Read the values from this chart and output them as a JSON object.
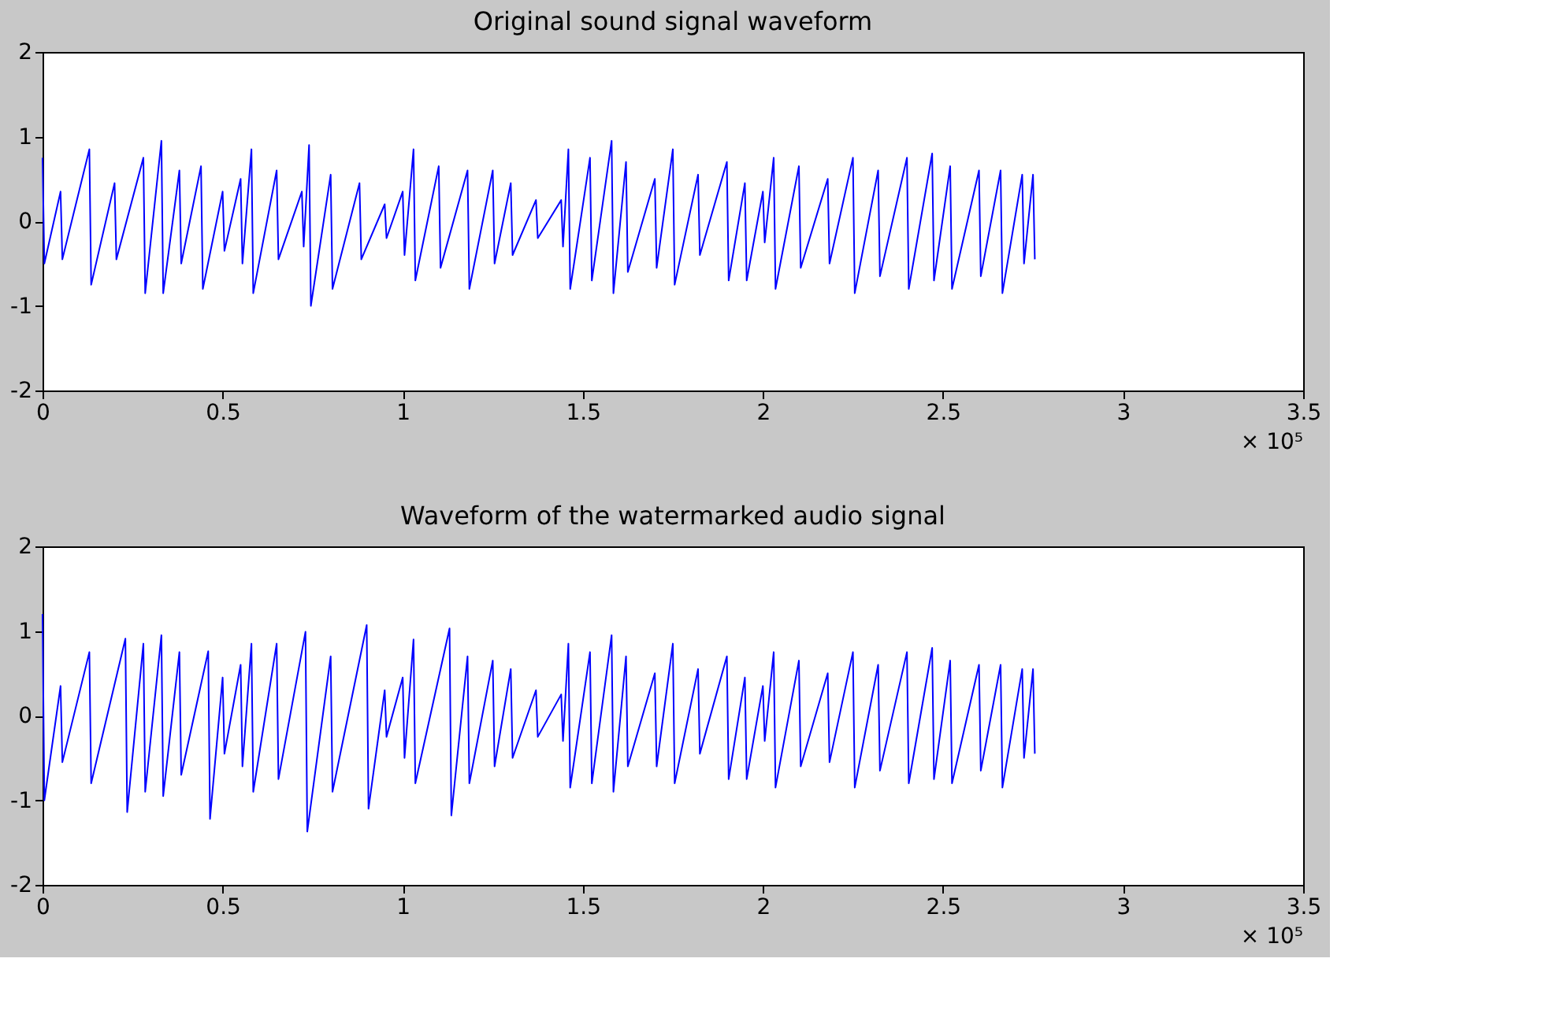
{
  "chart_data": [
    {
      "type": "line",
      "title": "Original sound signal waveform",
      "color": "#0000ff",
      "grid": false,
      "marker": "none",
      "line_style": "solid",
      "x": [
        0,
        0.005,
        0.05,
        0.055,
        0.13,
        0.135,
        0.2,
        0.205,
        0.28,
        0.285,
        0.33,
        0.335,
        0.38,
        0.385,
        0.44,
        0.445,
        0.5,
        0.505,
        0.55,
        0.555,
        0.58,
        0.585,
        0.65,
        0.655,
        0.72,
        0.725,
        0.74,
        0.745,
        0.8,
        0.805,
        0.88,
        0.885,
        0.95,
        0.955,
        1.0,
        1.005,
        1.03,
        1.035,
        1.1,
        1.105,
        1.18,
        1.185,
        1.25,
        1.255,
        1.3,
        1.305,
        1.37,
        1.375,
        1.44,
        1.445,
        1.46,
        1.465,
        1.52,
        1.525,
        1.58,
        1.585,
        1.62,
        1.625,
        1.7,
        1.705,
        1.75,
        1.755,
        1.82,
        1.825,
        1.9,
        1.905,
        1.95,
        1.955,
        2.0,
        2.005,
        2.03,
        2.035,
        2.1,
        2.105,
        2.18,
        2.185,
        2.25,
        2.255,
        2.32,
        2.325,
        2.4,
        2.405,
        2.47,
        2.475,
        2.52,
        2.525,
        2.6,
        2.605,
        2.66,
        2.665,
        2.72,
        2.725,
        2.75,
        2.755
      ],
      "values": [
        0.75,
        -0.5,
        0.35,
        -0.45,
        0.85,
        -0.75,
        0.45,
        -0.45,
        0.75,
        -0.85,
        0.95,
        -0.85,
        0.6,
        -0.5,
        0.65,
        -0.8,
        0.35,
        -0.35,
        0.5,
        -0.5,
        0.85,
        -0.85,
        0.6,
        -0.45,
        0.35,
        -0.3,
        0.9,
        -1.0,
        0.55,
        -0.8,
        0.45,
        -0.45,
        0.2,
        -0.2,
        0.35,
        -0.4,
        0.85,
        -0.7,
        0.65,
        -0.55,
        0.6,
        -0.8,
        0.6,
        -0.5,
        0.45,
        -0.4,
        0.25,
        -0.2,
        0.25,
        -0.3,
        0.85,
        -0.8,
        0.75,
        -0.7,
        0.95,
        -0.85,
        0.7,
        -0.6,
        0.5,
        -0.55,
        0.85,
        -0.75,
        0.55,
        -0.4,
        0.7,
        -0.7,
        0.45,
        -0.7,
        0.35,
        -0.25,
        0.75,
        -0.8,
        0.65,
        -0.55,
        0.5,
        -0.5,
        0.75,
        -0.85,
        0.6,
        -0.65,
        0.75,
        -0.8,
        0.8,
        -0.7,
        0.65,
        -0.8,
        0.6,
        -0.65,
        0.6,
        -0.85,
        0.55,
        -0.5,
        0.55,
        -0.45
      ],
      "xlim": [
        0,
        3.5
      ],
      "xticks": [
        0,
        0.5,
        1,
        1.5,
        2,
        2.5,
        3,
        3.5
      ],
      "ylim": [
        -2,
        2
      ],
      "yticks": [
        -2,
        -1,
        0,
        1,
        2
      ],
      "annotations": [
        "× 10⁵"
      ]
    },
    {
      "type": "line",
      "title": "Waveform of the watermarked audio signal",
      "color": "#0000ff",
      "grid": false,
      "marker": "none",
      "line_style": "solid",
      "x": [
        0,
        0.005,
        0.05,
        0.055,
        0.13,
        0.135,
        0.23,
        0.235,
        0.28,
        0.285,
        0.33,
        0.335,
        0.38,
        0.385,
        0.46,
        0.465,
        0.5,
        0.505,
        0.55,
        0.555,
        0.58,
        0.585,
        0.65,
        0.655,
        0.73,
        0.735,
        0.8,
        0.805,
        0.9,
        0.905,
        0.95,
        0.955,
        1.0,
        1.005,
        1.03,
        1.035,
        1.13,
        1.135,
        1.18,
        1.185,
        1.25,
        1.255,
        1.3,
        1.305,
        1.37,
        1.375,
        1.44,
        1.445,
        1.46,
        1.465,
        1.52,
        1.525,
        1.58,
        1.585,
        1.62,
        1.625,
        1.7,
        1.705,
        1.75,
        1.755,
        1.82,
        1.825,
        1.9,
        1.905,
        1.95,
        1.955,
        2.0,
        2.005,
        2.03,
        2.035,
        2.1,
        2.105,
        2.18,
        2.185,
        2.25,
        2.255,
        2.32,
        2.325,
        2.4,
        2.405,
        2.47,
        2.475,
        2.52,
        2.525,
        2.6,
        2.605,
        2.66,
        2.665,
        2.72,
        2.725,
        2.75,
        2.755
      ],
      "values": [
        1.2,
        -1.0,
        0.35,
        -0.55,
        0.75,
        -0.8,
        0.91,
        -1.14,
        0.85,
        -0.9,
        0.95,
        -0.95,
        0.75,
        -0.7,
        0.76,
        -1.22,
        0.45,
        -0.45,
        0.6,
        -0.6,
        0.85,
        -0.9,
        0.85,
        -0.75,
        0.99,
        -1.37,
        0.7,
        -0.9,
        1.07,
        -1.1,
        0.3,
        -0.25,
        0.45,
        -0.5,
        0.9,
        -0.8,
        1.03,
        -1.18,
        0.7,
        -0.8,
        0.65,
        -0.6,
        0.55,
        -0.5,
        0.3,
        -0.25,
        0.25,
        -0.3,
        0.85,
        -0.85,
        0.75,
        -0.8,
        0.95,
        -0.9,
        0.7,
        -0.6,
        0.5,
        -0.6,
        0.85,
        -0.8,
        0.55,
        -0.45,
        0.7,
        -0.75,
        0.45,
        -0.75,
        0.35,
        -0.3,
        0.75,
        -0.85,
        0.65,
        -0.6,
        0.5,
        -0.55,
        0.75,
        -0.85,
        0.6,
        -0.65,
        0.75,
        -0.8,
        0.8,
        -0.75,
        0.65,
        -0.8,
        0.6,
        -0.65,
        0.6,
        -0.85,
        0.55,
        -0.5,
        0.55,
        -0.45
      ],
      "xlim": [
        0,
        3.5
      ],
      "xticks": [
        0,
        0.5,
        1,
        1.5,
        2,
        2.5,
        3,
        3.5
      ],
      "ylim": [
        -2,
        2
      ],
      "yticks": [
        -2,
        -1,
        0,
        1,
        2
      ],
      "annotations": [
        "× 10⁵"
      ]
    }
  ]
}
